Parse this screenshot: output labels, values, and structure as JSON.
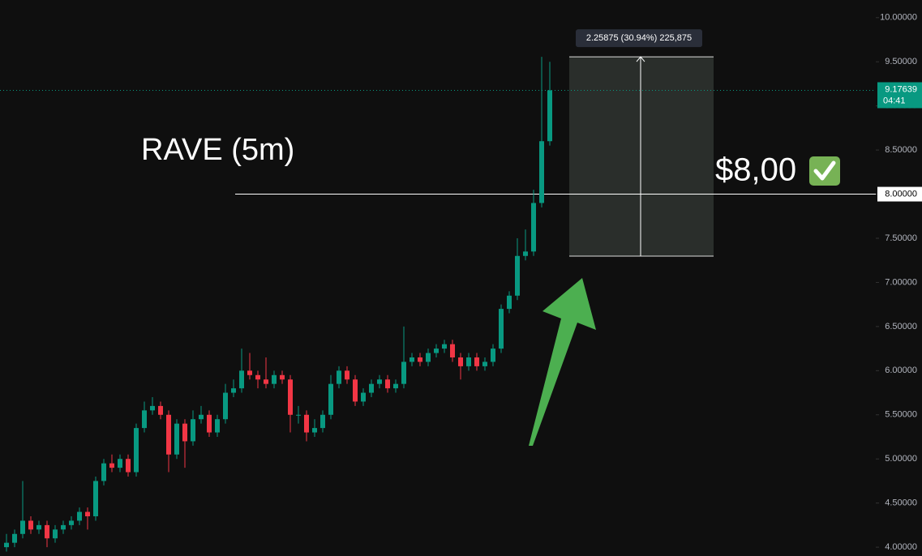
{
  "chart_data": {
    "type": "candlestick",
    "title": "RAVE (5m)",
    "up_color": "#089981",
    "down_color": "#f23645",
    "ylim": [
      3.9,
      10.2
    ],
    "yticks": [
      {
        "value": 4,
        "label": "4.00000"
      },
      {
        "value": 4.5,
        "label": "4.50000"
      },
      {
        "value": 5,
        "label": "5.00000"
      },
      {
        "value": 5.5,
        "label": "5.50000"
      },
      {
        "value": 6,
        "label": "6.00000"
      },
      {
        "value": 6.5,
        "label": "6.50000"
      },
      {
        "value": 7,
        "label": "7.00000"
      },
      {
        "value": 7.5,
        "label": "7.50000"
      },
      {
        "value": 8,
        "label": "8.00000"
      },
      {
        "value": 8.5,
        "label": "8.50000"
      },
      {
        "value": 9,
        "label": "9.00000"
      },
      {
        "value": 9.5,
        "label": "9.50000"
      },
      {
        "value": 10,
        "label": "10.00000"
      }
    ],
    "open": [
      4.0,
      4.05,
      4.15,
      4.3,
      4.2,
      4.25,
      4.1,
      4.2,
      4.25,
      4.3,
      4.4,
      4.35,
      4.75,
      4.95,
      4.9,
      5.0,
      4.85,
      5.35,
      5.55,
      5.6,
      5.5,
      5.05,
      5.4,
      5.2,
      5.45,
      5.5,
      5.3,
      5.45,
      5.75,
      5.8,
      6.0,
      5.95,
      5.9,
      5.85,
      5.95,
      5.9,
      5.5,
      5.5,
      5.3,
      5.35,
      5.5,
      5.85,
      6.0,
      5.9,
      5.65,
      5.75,
      5.85,
      5.9,
      5.8,
      5.85,
      6.1,
      6.15,
      6.1,
      6.2,
      6.25,
      6.3,
      6.15,
      6.05,
      6.15,
      6.05,
      6.1,
      6.25,
      6.7,
      6.85,
      7.3,
      7.35,
      7.9,
      8.6
    ],
    "high": [
      4.15,
      4.2,
      4.75,
      4.35,
      4.3,
      4.3,
      4.25,
      4.3,
      4.35,
      4.45,
      4.45,
      4.8,
      5.0,
      5.05,
      5.05,
      5.05,
      5.4,
      5.65,
      5.7,
      5.65,
      5.55,
      5.45,
      5.45,
      5.55,
      5.6,
      5.55,
      5.5,
      5.85,
      5.9,
      6.25,
      6.2,
      6.0,
      6.15,
      6.0,
      6.0,
      5.95,
      5.6,
      5.55,
      5.45,
      5.55,
      5.95,
      6.05,
      6.05,
      5.95,
      5.8,
      5.9,
      5.95,
      5.95,
      5.9,
      6.5,
      6.2,
      6.2,
      6.25,
      6.3,
      6.35,
      6.35,
      6.2,
      6.2,
      6.2,
      6.15,
      6.3,
      6.75,
      6.9,
      7.5,
      7.6,
      8.05,
      9.55639,
      9.5
    ],
    "low": [
      3.95,
      4.0,
      4.1,
      4.15,
      4.15,
      4.0,
      4.05,
      4.15,
      4.2,
      4.25,
      4.2,
      4.3,
      4.7,
      4.85,
      4.85,
      4.8,
      4.8,
      5.3,
      5.5,
      5.45,
      4.85,
      5.0,
      4.9,
      5.15,
      5.4,
      5.25,
      5.25,
      5.4,
      5.7,
      5.75,
      5.9,
      5.8,
      5.8,
      5.8,
      5.85,
      5.3,
      5.4,
      5.2,
      5.25,
      5.3,
      5.45,
      5.8,
      5.85,
      5.6,
      5.6,
      5.7,
      5.8,
      5.75,
      5.75,
      5.8,
      6.05,
      6.05,
      6.05,
      6.15,
      6.2,
      6.1,
      5.9,
      6.0,
      6.0,
      6.0,
      6.05,
      6.2,
      6.65,
      6.8,
      7.25,
      7.3,
      7.85,
      8.55
    ],
    "close": [
      4.05,
      4.15,
      4.3,
      4.2,
      4.25,
      4.1,
      4.2,
      4.25,
      4.3,
      4.4,
      4.35,
      4.75,
      4.95,
      4.9,
      5.0,
      4.85,
      5.35,
      5.55,
      5.6,
      5.5,
      5.05,
      5.4,
      5.2,
      5.45,
      5.5,
      5.3,
      5.45,
      5.75,
      5.8,
      6.0,
      5.95,
      5.9,
      5.85,
      5.95,
      5.9,
      5.5,
      5.5,
      5.3,
      5.35,
      5.5,
      5.85,
      6.0,
      5.9,
      5.65,
      5.75,
      5.85,
      5.9,
      5.8,
      5.85,
      6.1,
      6.15,
      6.1,
      6.2,
      6.25,
      6.3,
      6.15,
      6.05,
      6.15,
      6.05,
      6.1,
      6.25,
      6.7,
      6.85,
      7.3,
      7.35,
      7.9,
      8.6,
      9.17639
    ],
    "level_line": {
      "value": 8,
      "label": "8.00000"
    },
    "last_price": {
      "value": 9.17639,
      "label": "9.17639",
      "countdown": "04:41"
    },
    "measure": {
      "low": 7.29764,
      "high": 9.55639,
      "label": "2.25875 (30.94%) 225,875"
    },
    "target_label": "$8,00"
  }
}
